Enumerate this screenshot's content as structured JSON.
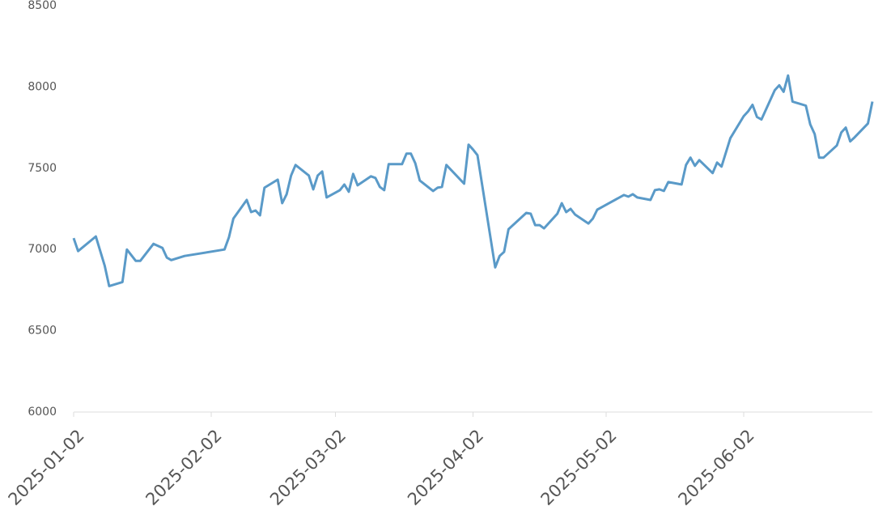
{
  "chart_data": {
    "type": "line",
    "x": [
      "2025-01-02",
      "2025-01-03",
      "2025-01-07",
      "2025-01-08",
      "2025-01-09",
      "2025-01-10",
      "2025-01-13",
      "2025-01-14",
      "2025-01-16",
      "2025-01-17",
      "2025-01-20",
      "2025-01-22",
      "2025-01-23",
      "2025-01-24",
      "2025-01-27",
      "2025-02-05",
      "2025-02-06",
      "2025-02-07",
      "2025-02-10",
      "2025-02-11",
      "2025-02-12",
      "2025-02-13",
      "2025-02-14",
      "2025-02-17",
      "2025-02-18",
      "2025-02-19",
      "2025-02-20",
      "2025-02-21",
      "2025-02-24",
      "2025-02-25",
      "2025-02-26",
      "2025-02-27",
      "2025-02-28",
      "2025-03-03",
      "2025-03-04",
      "2025-03-05",
      "2025-03-06",
      "2025-03-07",
      "2025-03-10",
      "2025-03-11",
      "2025-03-12",
      "2025-03-13",
      "2025-03-14",
      "2025-03-17",
      "2025-03-18",
      "2025-03-19",
      "2025-03-20",
      "2025-03-21",
      "2025-03-24",
      "2025-03-25",
      "2025-03-26",
      "2025-03-27",
      "2025-03-31",
      "2025-04-01",
      "2025-04-02",
      "2025-04-03",
      "2025-04-07",
      "2025-04-08",
      "2025-04-09",
      "2025-04-10",
      "2025-04-14",
      "2025-04-15",
      "2025-04-16",
      "2025-04-17",
      "2025-04-18",
      "2025-04-21",
      "2025-04-22",
      "2025-04-23",
      "2025-04-24",
      "2025-04-25",
      "2025-04-28",
      "2025-04-29",
      "2025-04-30",
      "2025-05-06",
      "2025-05-07",
      "2025-05-08",
      "2025-05-09",
      "2025-05-12",
      "2025-05-13",
      "2025-05-14",
      "2025-05-15",
      "2025-05-16",
      "2025-05-19",
      "2025-05-20",
      "2025-05-21",
      "2025-05-22",
      "2025-05-23",
      "2025-05-26",
      "2025-05-27",
      "2025-05-28",
      "2025-05-30",
      "2025-06-02",
      "2025-06-03",
      "2025-06-04",
      "2025-06-05",
      "2025-06-06",
      "2025-06-09",
      "2025-06-10",
      "2025-06-11",
      "2025-06-12",
      "2025-06-13",
      "2025-06-16",
      "2025-06-17",
      "2025-06-18",
      "2025-06-19",
      "2025-06-20",
      "2025-06-23",
      "2025-06-24",
      "2025-06-25",
      "2025-06-26",
      "2025-06-27",
      "2025-06-30",
      "2025-07-01"
    ],
    "series": [
      {
        "color": "#5a9ac8",
        "values": [
          7070,
          6990,
          7080,
          6990,
          6900,
          6775,
          6800,
          7000,
          6930,
          6930,
          7035,
          7010,
          6950,
          6935,
          6960,
          7000,
          7075,
          7190,
          7305,
          7230,
          7240,
          7210,
          7380,
          7430,
          7285,
          7340,
          7455,
          7520,
          7455,
          7370,
          7455,
          7480,
          7320,
          7365,
          7400,
          7355,
          7465,
          7395,
          7450,
          7440,
          7385,
          7365,
          7525,
          7525,
          7590,
          7590,
          7530,
          7425,
          7360,
          7380,
          7385,
          7520,
          7405,
          7645,
          7615,
          7580,
          6890,
          6960,
          6985,
          7125,
          7225,
          7220,
          7150,
          7150,
          7130,
          7220,
          7285,
          7230,
          7250,
          7215,
          7160,
          7190,
          7245,
          7335,
          7325,
          7340,
          7320,
          7305,
          7365,
          7370,
          7360,
          7415,
          7400,
          7520,
          7565,
          7515,
          7550,
          7470,
          7535,
          7510,
          7685,
          7820,
          7850,
          7890,
          7815,
          7800,
          7980,
          8010,
          7970,
          8070,
          7910,
          7885,
          7770,
          7710,
          7565,
          7565,
          7640,
          7720,
          7750,
          7665,
          7690,
          7775,
          7910
        ]
      }
    ],
    "xlim": [
      "2025-01-02",
      "2025-07-01"
    ],
    "xticks": [
      "2025-01-02",
      "2025-02-02",
      "2025-03-02",
      "2025-04-02",
      "2025-05-02",
      "2025-06-02"
    ],
    "ylim": [
      6000,
      8500
    ],
    "yticks": [
      6000,
      6500,
      7000,
      7500,
      8000,
      8500
    ]
  }
}
